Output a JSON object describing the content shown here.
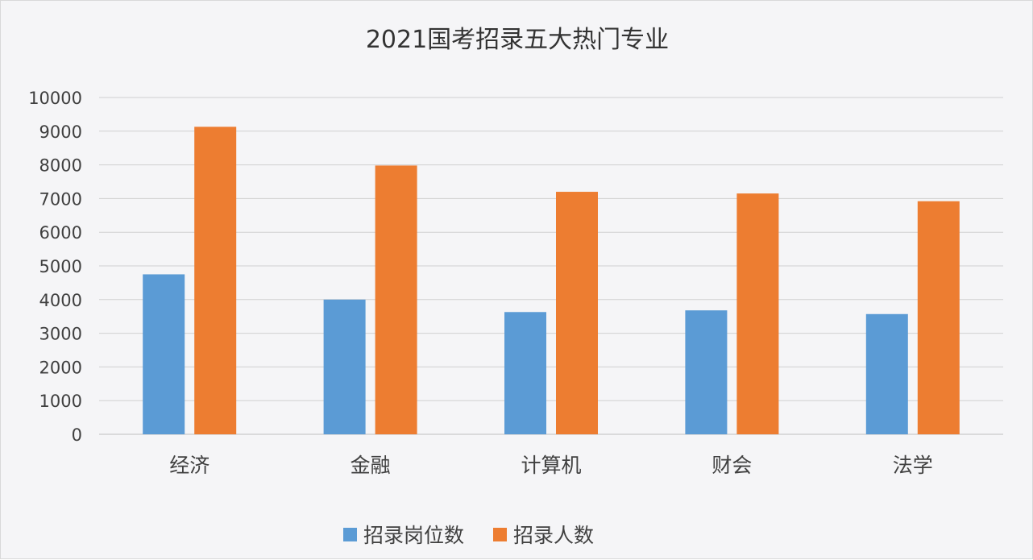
{
  "chart_data": {
    "type": "bar",
    "title": "2021国考招录五大热门专业",
    "categories": [
      "经济",
      "金融",
      "计算机",
      "财会",
      "法学"
    ],
    "series": [
      {
        "name": "招录岗位数",
        "color": "#5b9bd5",
        "values": [
          4750,
          4000,
          3630,
          3680,
          3570
        ]
      },
      {
        "name": "招录人数",
        "color": "#ed7d31",
        "values": [
          9130,
          7980,
          7200,
          7150,
          6920
        ]
      }
    ],
    "yticks": [
      "0",
      "1000",
      "2000",
      "3000",
      "4000",
      "5000",
      "6000",
      "7000",
      "8000",
      "9000",
      "10000"
    ],
    "ylim": [
      0,
      10000
    ],
    "grid": true,
    "legend": "bottom"
  }
}
